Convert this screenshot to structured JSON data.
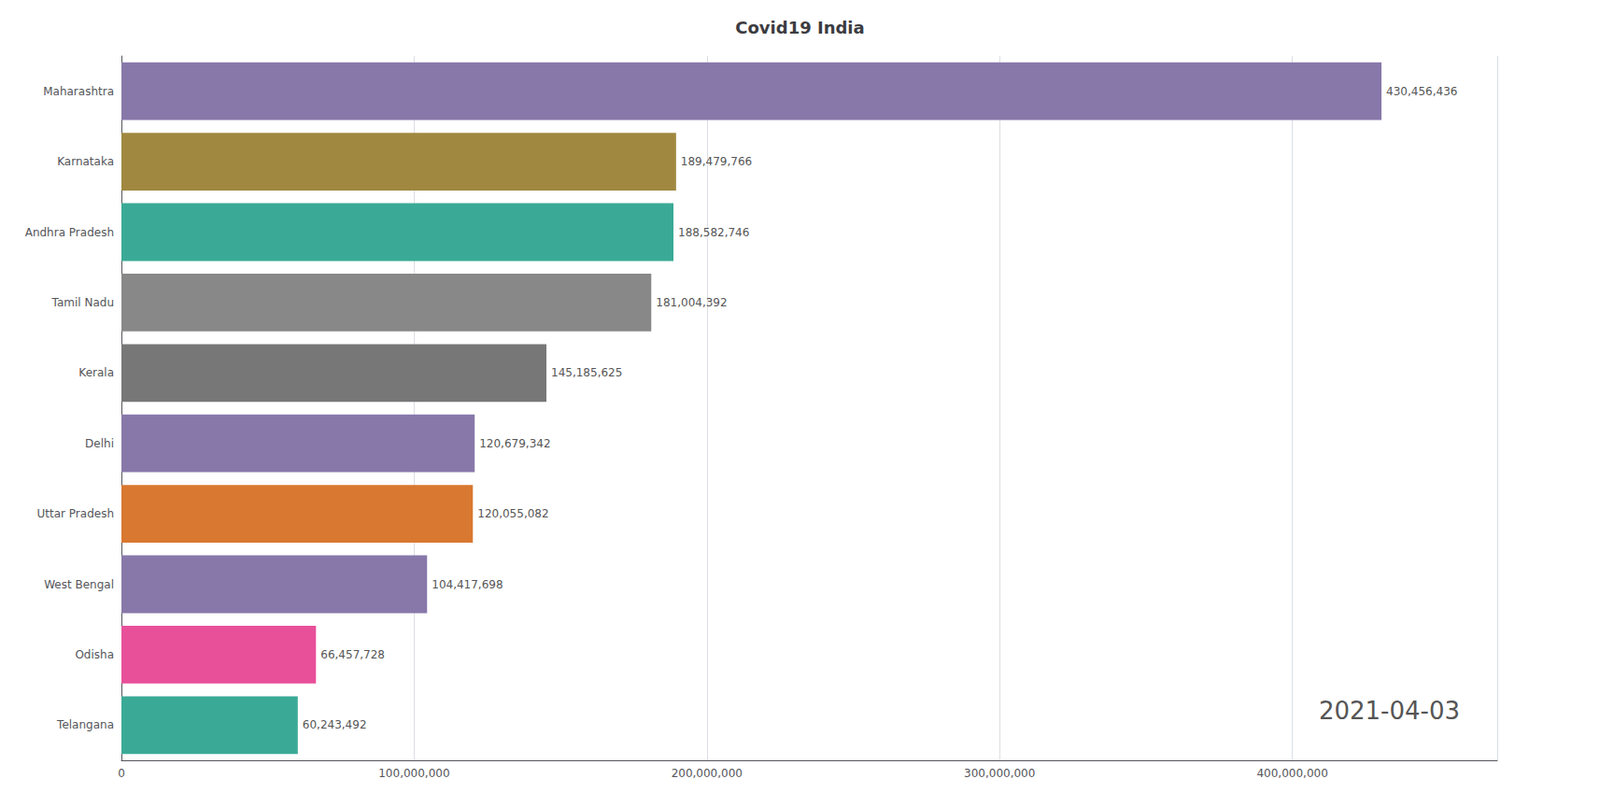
{
  "chart_data": {
    "type": "bar",
    "orientation": "horizontal",
    "title": "Covid19 India",
    "annotations": [
      "2021-04-03"
    ],
    "categories": [
      "Maharashtra",
      "Karnataka",
      "Andhra Pradesh",
      "Tamil Nadu",
      "Kerala",
      "Delhi",
      "Uttar Pradesh",
      "West Bengal",
      "Odisha",
      "Telangana"
    ],
    "values": [
      430456436,
      189479766,
      188582746,
      181004392,
      145185625,
      120679342,
      120055082,
      104417698,
      66457728,
      60243492
    ],
    "value_labels": [
      "430,456,436",
      "189,479,766",
      "188,582,746",
      "181,004,392",
      "145,185,625",
      "120,679,342",
      "120,055,082",
      "104,417,698",
      "66,457,728",
      "60,243,492"
    ],
    "data_labels": true,
    "colors": [
      "#8878aa",
      "#a08840",
      "#3aaa96",
      "#888888",
      "#777777",
      "#8878aa",
      "#d97830",
      "#8878aa",
      "#e8509a",
      "#3aaa96"
    ],
    "xlim": [
      0,
      470000000
    ],
    "xticks": [
      0,
      {
        "value": 100000000,
        "label": "100,000,000"
      },
      {
        "value": 200000000,
        "label": "200,000,000"
      },
      {
        "value": 300000000,
        "label": "300,000,000"
      },
      {
        "value": 400000000,
        "label": "400,000,000"
      }
    ],
    "grid": true
  }
}
